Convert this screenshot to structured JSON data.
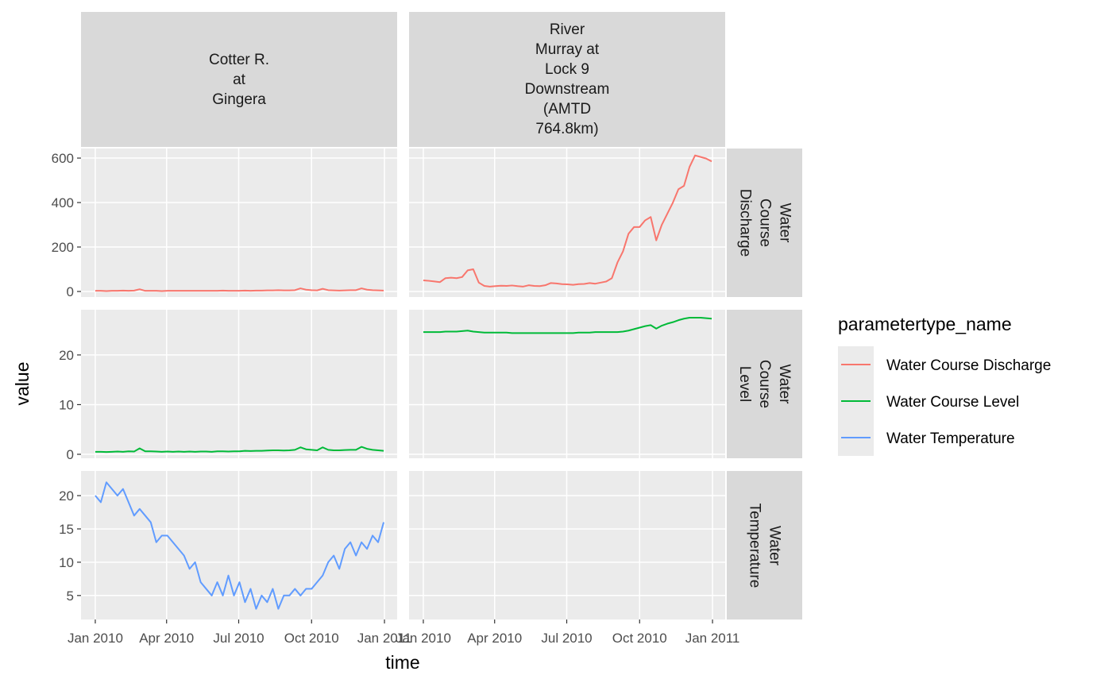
{
  "chart_data": {
    "type": "line",
    "x_label": "time",
    "y_label": "value",
    "legend_title": "parametertype_name",
    "columns": [
      "Cotter R.\nat\nGingera",
      "River\nMurray at\nLock 9\nDownstream\n(AMTD\n764.8km)"
    ],
    "rows": [
      {
        "label": "Water\nCourse\nDischarge",
        "ylim": [
          -25,
          643
        ],
        "yticks": [
          0,
          200,
          400,
          600
        ]
      },
      {
        "label": "Water\nCourse\nLevel",
        "ylim": [
          -0.8,
          29.1
        ],
        "yticks": [
          0,
          10,
          20
        ]
      },
      {
        "label": "Water\nTemperature",
        "ylim": [
          1.4,
          23.7
        ],
        "yticks": [
          5,
          10,
          15,
          20
        ]
      }
    ],
    "xlim": [
      "2009-12-14",
      "2011-01-17"
    ],
    "xticks": [
      {
        "value": "2010-01-01",
        "label": "Jan 2010"
      },
      {
        "value": "2010-04-01",
        "label": "Apr 2010"
      },
      {
        "value": "2010-07-01",
        "label": "Jul 2010"
      },
      {
        "value": "2010-10-01",
        "label": "Oct 2010"
      },
      {
        "value": "2011-01-01",
        "label": "Jan 2011"
      }
    ],
    "grid": true,
    "legend_position": "right",
    "x": [
      "2010-01-01",
      "2010-01-08",
      "2010-01-15",
      "2010-01-22",
      "2010-01-29",
      "2010-02-05",
      "2010-02-12",
      "2010-02-19",
      "2010-02-26",
      "2010-03-05",
      "2010-03-12",
      "2010-03-19",
      "2010-03-26",
      "2010-04-02",
      "2010-04-09",
      "2010-04-16",
      "2010-04-23",
      "2010-04-30",
      "2010-05-07",
      "2010-05-14",
      "2010-05-21",
      "2010-05-28",
      "2010-06-04",
      "2010-06-11",
      "2010-06-18",
      "2010-06-25",
      "2010-07-02",
      "2010-07-09",
      "2010-07-16",
      "2010-07-23",
      "2010-07-30",
      "2010-08-06",
      "2010-08-13",
      "2010-08-20",
      "2010-08-27",
      "2010-09-03",
      "2010-09-10",
      "2010-09-17",
      "2010-09-24",
      "2010-10-01",
      "2010-10-08",
      "2010-10-15",
      "2010-10-22",
      "2010-10-29",
      "2010-11-05",
      "2010-11-12",
      "2010-11-19",
      "2010-11-26",
      "2010-12-03",
      "2010-12-10",
      "2010-12-17",
      "2010-12-24",
      "2010-12-31"
    ],
    "series": [
      {
        "name": "Water Course Discharge",
        "color": "#F8766D",
        "values": [
          [
            3,
            3,
            2,
            3,
            3,
            4,
            3,
            4,
            10,
            3,
            3,
            3,
            2,
            3,
            3,
            3,
            3,
            3,
            3,
            3,
            3,
            3,
            3,
            4,
            3,
            3,
            3,
            4,
            3,
            4,
            4,
            5,
            5,
            6,
            5,
            5,
            6,
            14,
            8,
            6,
            5,
            12,
            6,
            5,
            4,
            5,
            6,
            6,
            14,
            8,
            6,
            5,
            4
          ],
          [
            50,
            48,
            45,
            42,
            60,
            62,
            60,
            65,
            95,
            100,
            40,
            25,
            22,
            24,
            26,
            25,
            27,
            24,
            22,
            28,
            25,
            24,
            28,
            38,
            36,
            33,
            32,
            30,
            33,
            34,
            38,
            35,
            40,
            45,
            60,
            130,
            180,
            260,
            290,
            290,
            320,
            335,
            230,
            300,
            350,
            400,
            460,
            475,
            560,
            612,
            605,
            598,
            585
          ]
        ]
      },
      {
        "name": "Water Course Level",
        "color": "#00BA38",
        "values": [
          [
            0.5,
            0.5,
            0.45,
            0.5,
            0.55,
            0.5,
            0.6,
            0.55,
            1.2,
            0.6,
            0.6,
            0.55,
            0.5,
            0.55,
            0.5,
            0.55,
            0.5,
            0.55,
            0.5,
            0.55,
            0.55,
            0.5,
            0.6,
            0.6,
            0.55,
            0.6,
            0.6,
            0.7,
            0.65,
            0.7,
            0.7,
            0.75,
            0.8,
            0.8,
            0.75,
            0.8,
            0.9,
            1.4,
            1.0,
            0.9,
            0.8,
            1.4,
            0.9,
            0.8,
            0.8,
            0.85,
            0.9,
            0.9,
            1.5,
            1.1,
            0.9,
            0.8,
            0.7
          ],
          [
            24.6,
            24.6,
            24.6,
            24.6,
            24.7,
            24.7,
            24.7,
            24.8,
            24.9,
            24.7,
            24.6,
            24.5,
            24.5,
            24.5,
            24.5,
            24.5,
            24.4,
            24.4,
            24.4,
            24.4,
            24.4,
            24.4,
            24.4,
            24.4,
            24.4,
            24.4,
            24.4,
            24.4,
            24.5,
            24.5,
            24.5,
            24.6,
            24.6,
            24.6,
            24.6,
            24.6,
            24.7,
            24.9,
            25.2,
            25.5,
            25.8,
            26.0,
            25.3,
            25.9,
            26.3,
            26.6,
            27.0,
            27.3,
            27.5,
            27.5,
            27.5,
            27.4,
            27.3
          ]
        ]
      },
      {
        "name": "Water Temperature",
        "color": "#619CFF",
        "values": [
          [
            20,
            19,
            22,
            21,
            20,
            21,
            19,
            17,
            18,
            17,
            16,
            13,
            14,
            14,
            13,
            12,
            11,
            9,
            10,
            7,
            6,
            5,
            7,
            5,
            8,
            5,
            7,
            4,
            6,
            3,
            5,
            4,
            6,
            3,
            5,
            5,
            6,
            5,
            6,
            6,
            7,
            8,
            10,
            11,
            9,
            12,
            13,
            11,
            13,
            12,
            14,
            13,
            16
          ]
        ]
      }
    ]
  }
}
